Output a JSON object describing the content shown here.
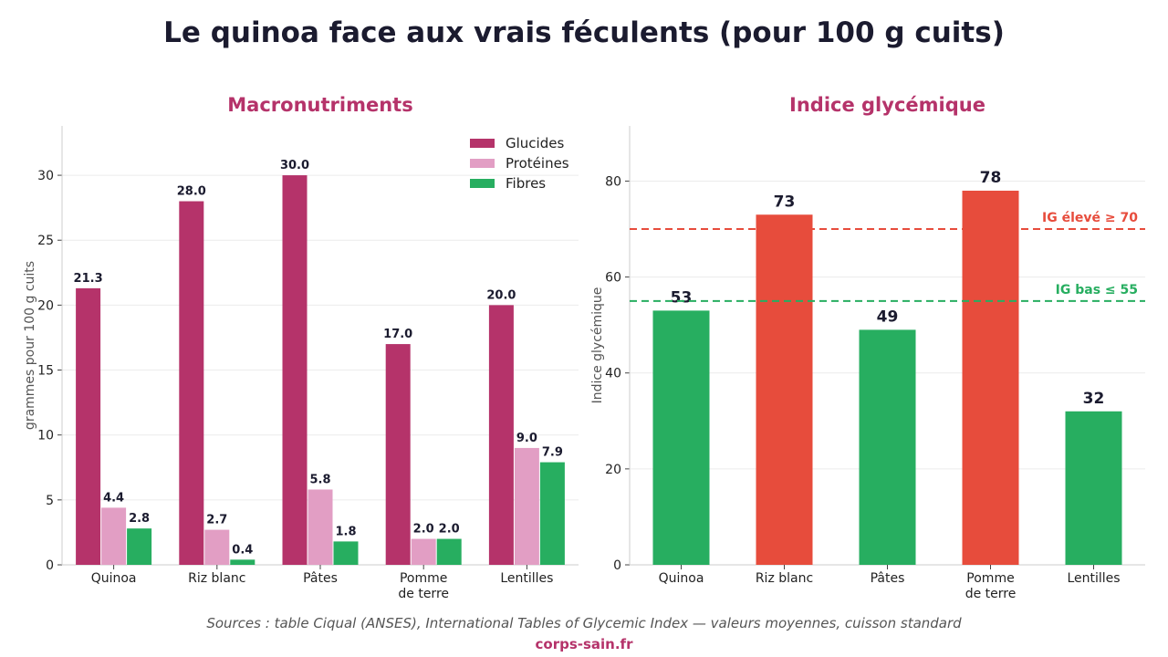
{
  "page": {
    "title": "Le quinoa face aux vrais féculents (pour 100 g cuits)",
    "source": "Sources : table Ciqual (ANSES), International Tables of Glycemic Index — valeurs moyennes, cuisson standard",
    "brand": "corps-sain.fr"
  },
  "chart_data": [
    {
      "type": "bar",
      "title": "Macronutriments",
      "xlabel": "",
      "ylabel": "grammes pour 100 g cuits",
      "categories": [
        "Quinoa",
        "Riz blanc",
        "Pâtes",
        "Pomme\nde terre",
        "Lentilles"
      ],
      "series": [
        {
          "name": "Glucides",
          "color": "#b5336a",
          "values": [
            21.3,
            28.0,
            30.0,
            17.0,
            20.0
          ]
        },
        {
          "name": "Protéines",
          "color": "#e29ec4",
          "values": [
            4.4,
            2.7,
            5.8,
            2.0,
            9.0
          ]
        },
        {
          "name": "Fibres",
          "color": "#27ae60",
          "values": [
            2.8,
            0.4,
            1.8,
            2.0,
            7.9
          ]
        }
      ],
      "ylim": [
        0,
        33.8
      ],
      "yticks": [
        0,
        5,
        10,
        15,
        20,
        25,
        30
      ],
      "value_labels": [
        "21.3",
        "28.0",
        "30.0",
        "17.0",
        "20.0",
        "4.4",
        "2.7",
        "5.8",
        "2.0",
        "9.0",
        "2.8",
        "0.4",
        "1.8",
        "2.0",
        "7.9"
      ],
      "grid": true,
      "legend": "top-right"
    },
    {
      "type": "bar",
      "title": "Indice glycémique",
      "xlabel": "",
      "ylabel": "Indice glycémique",
      "categories": [
        "Quinoa",
        "Riz blanc",
        "Pâtes",
        "Pomme\nde terre",
        "Lentilles"
      ],
      "values": [
        53,
        73,
        49,
        78,
        32
      ],
      "value_labels": [
        "53",
        "73",
        "49",
        "78",
        "32"
      ],
      "bar_colors": [
        "#27ae60",
        "#e74c3c",
        "#27ae60",
        "#e74c3c",
        "#27ae60"
      ],
      "ylim": [
        0,
        91.5
      ],
      "yticks": [
        0,
        20,
        40,
        60,
        80
      ],
      "reference_lines": [
        {
          "value": 70,
          "label": "IG élevé ≥ 70",
          "color": "#e74c3c"
        },
        {
          "value": 55,
          "label": "IG bas ≤ 55",
          "color": "#27ae60"
        }
      ],
      "grid": true,
      "legend": "none"
    }
  ],
  "colors": {
    "title": "#1b1b2f",
    "accent": "#b5336a",
    "axis": "#cccccc",
    "grid": "#ececec",
    "tick_text": "#222222",
    "value_text": "#1b1b2f"
  }
}
